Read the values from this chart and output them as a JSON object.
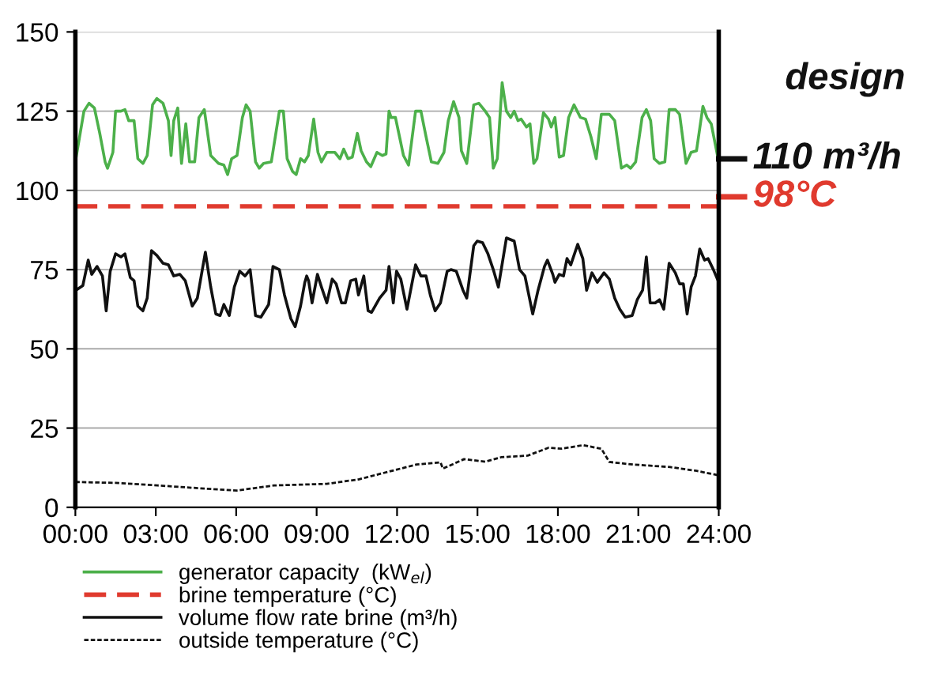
{
  "chart_data": {
    "type": "line",
    "xlim": [
      0,
      24
    ],
    "ylim": [
      0,
      150
    ],
    "xticks": [
      {
        "value": 0,
        "label": "00:00"
      },
      {
        "value": 3,
        "label": "03:00"
      },
      {
        "value": 6,
        "label": "06:00"
      },
      {
        "value": 9,
        "label": "09:00"
      },
      {
        "value": 12,
        "label": "12:00"
      },
      {
        "value": 15,
        "label": "15:00"
      },
      {
        "value": 18,
        "label": "18:00"
      },
      {
        "value": 21,
        "label": "21:00"
      },
      {
        "value": 24,
        "label": "24:00"
      }
    ],
    "yticks": [
      0,
      25,
      50,
      75,
      100,
      125,
      150
    ],
    "grid": "y",
    "legend": "bottom",
    "series": [
      {
        "name": "generator capacity  (kW$_{el}$)",
        "color": "#4cb04a",
        "line_style": "solid",
        "x": [
          0.02,
          0.32,
          0.51,
          0.71,
          0.91,
          1.11,
          1.2,
          1.4,
          1.5,
          1.7,
          1.85,
          1.99,
          2.19,
          2.33,
          2.52,
          2.68,
          2.88,
          3.04,
          3.27,
          3.47,
          3.57,
          3.67,
          3.82,
          3.96,
          4.12,
          4.26,
          4.45,
          4.61,
          4.81,
          5.05,
          5.34,
          5.54,
          5.68,
          5.83,
          6.03,
          6.23,
          6.37,
          6.52,
          6.72,
          6.86,
          7.02,
          7.31,
          7.61,
          7.76,
          7.9,
          8.1,
          8.24,
          8.4,
          8.55,
          8.69,
          8.89,
          9.05,
          9.18,
          9.38,
          9.68,
          9.87,
          10.01,
          10.17,
          10.33,
          10.52,
          10.66,
          10.86,
          11.02,
          11.25,
          11.45,
          11.59,
          11.7,
          11.78,
          11.94,
          12.24,
          12.43,
          12.69,
          12.89,
          13.08,
          13.28,
          13.52,
          13.75,
          13.91,
          14.11,
          14.31,
          14.4,
          14.6,
          14.86,
          15.05,
          15.29,
          15.45,
          15.59,
          15.74,
          15.92,
          16.08,
          16.24,
          16.37,
          16.51,
          16.63,
          16.83,
          16.96,
          17.1,
          17.22,
          17.46,
          17.65,
          17.75,
          17.89,
          18.05,
          18.21,
          18.4,
          18.6,
          18.84,
          19.03,
          19.23,
          19.43,
          19.62,
          19.92,
          20.12,
          20.37,
          20.57,
          20.71,
          20.9,
          21.14,
          21.3,
          21.46,
          21.59,
          21.79,
          21.99,
          22.15,
          22.38,
          22.54,
          22.78,
          22.97,
          23.17,
          23.41,
          23.56,
          23.72,
          24
        ],
        "values": [
          110,
          125,
          127.5,
          126,
          118,
          109,
          107,
          112,
          125,
          125,
          125.5,
          122,
          122,
          110,
          108.5,
          111,
          127,
          129,
          127.5,
          122,
          111,
          122,
          126,
          108.5,
          121,
          109,
          109,
          123,
          125.5,
          111,
          108.5,
          108,
          105,
          110,
          111,
          123,
          127,
          125,
          109,
          107,
          108.5,
          109,
          125,
          125,
          110,
          106,
          105,
          110,
          109,
          111,
          122.5,
          112,
          109,
          112,
          112,
          110,
          113,
          110,
          110.5,
          118,
          112.5,
          109,
          107.5,
          112,
          111,
          111.5,
          125,
          123,
          123,
          111,
          108,
          125,
          125,
          117,
          109,
          108.5,
          112,
          122,
          128,
          123,
          112.5,
          108.5,
          127,
          127.5,
          125,
          123,
          107,
          110,
          134,
          125,
          123,
          125,
          122,
          122.5,
          120,
          121,
          108.5,
          110,
          124.5,
          122.5,
          120,
          123,
          110.5,
          111,
          123,
          127,
          123,
          122.5,
          117,
          110,
          124,
          124,
          122,
          107,
          108,
          107,
          109,
          123,
          125.5,
          122,
          110,
          108.5,
          109,
          125.5,
          125.5,
          124,
          108.5,
          112,
          112.5,
          126.5,
          123,
          121,
          109
        ]
      },
      {
        "name": "brine temperature (°C)",
        "color": "#e03a2e",
        "line_style": "dashed",
        "x": [
          0,
          24
        ],
        "values": [
          95,
          95
        ]
      },
      {
        "name": "volume flow rate brine (m³/h)",
        "color": "#111111",
        "line_style": "solid",
        "x": [
          0.02,
          0.28,
          0.48,
          0.61,
          0.81,
          1.01,
          1.15,
          1.3,
          1.5,
          1.7,
          1.85,
          2.05,
          2.19,
          2.33,
          2.52,
          2.68,
          2.84,
          3.04,
          3.27,
          3.47,
          3.67,
          3.9,
          4.1,
          4.36,
          4.55,
          4.85,
          5.05,
          5.24,
          5.4,
          5.54,
          5.74,
          5.93,
          6.13,
          6.33,
          6.52,
          6.72,
          6.92,
          7.21,
          7.37,
          7.61,
          7.8,
          8.04,
          8.2,
          8.4,
          8.56,
          8.63,
          8.7,
          8.83,
          9.03,
          9.18,
          9.38,
          9.58,
          9.73,
          9.93,
          10.07,
          10.27,
          10.46,
          10.56,
          10.76,
          10.92,
          11.05,
          11.35,
          11.59,
          11.7,
          11.86,
          11.98,
          12.14,
          12.37,
          12.69,
          12.89,
          13.08,
          13.24,
          13.42,
          13.62,
          13.87,
          14.01,
          14.21,
          14.46,
          14.6,
          14.86,
          14.99,
          15.19,
          15.39,
          15.59,
          15.78,
          16.08,
          16.37,
          16.57,
          16.77,
          17.06,
          17.26,
          17.5,
          17.61,
          17.81,
          17.89,
          18.05,
          18.21,
          18.34,
          18.48,
          18.74,
          18.93,
          19.07,
          19.27,
          19.47,
          19.72,
          19.92,
          20.12,
          20.31,
          20.51,
          20.77,
          20.96,
          21.16,
          21.3,
          21.44,
          21.63,
          21.79,
          21.95,
          22.15,
          22.38,
          22.54,
          22.68,
          22.82,
          22.97,
          23.13,
          23.29,
          23.47,
          23.6,
          23.8,
          24
        ],
        "values": [
          68.5,
          70,
          78,
          73.5,
          76,
          73,
          62,
          74.5,
          80,
          79,
          80,
          72.5,
          71.5,
          63.5,
          62,
          66,
          81,
          79.5,
          77,
          76.5,
          73,
          73.5,
          71.5,
          63.5,
          66,
          80.5,
          69.5,
          61,
          60.5,
          64,
          60.5,
          69.5,
          74.5,
          73,
          75,
          60.5,
          60,
          64,
          76,
          75,
          67,
          59.5,
          57,
          63.5,
          71,
          73,
          71.5,
          64.5,
          73.5,
          69.5,
          64.5,
          72,
          70.5,
          64.5,
          64.5,
          71.5,
          72,
          67,
          73,
          62,
          61.5,
          66,
          68.5,
          76,
          64.5,
          74.5,
          72,
          62.5,
          76.5,
          73,
          73,
          67,
          62,
          64.5,
          74.5,
          75,
          74.5,
          68.5,
          66,
          82.5,
          84,
          83.5,
          80,
          75,
          69.5,
          85,
          84,
          75,
          73,
          61,
          68.5,
          76,
          78,
          73.5,
          71,
          73.5,
          73,
          78.5,
          76.5,
          83,
          78.5,
          68.5,
          74,
          71,
          74,
          72,
          66,
          62.5,
          60,
          60.5,
          65.5,
          68.5,
          79,
          64.5,
          64.5,
          65.5,
          62.5,
          77,
          74,
          70.5,
          70.5,
          61,
          69.5,
          73,
          81.5,
          78,
          78.5,
          75,
          71
        ]
      },
      {
        "name": "outside temperature (°C)",
        "color": "#111111",
        "line_style": "dotted",
        "x": [
          0,
          1.5,
          3.07,
          4.65,
          6.03,
          7.41,
          9.38,
          10.56,
          11.94,
          12.73,
          13.62,
          13.71,
          14.5,
          15.29,
          15.88,
          16.87,
          17.65,
          18.15,
          18.93,
          19.62,
          19.92,
          20.81,
          22.19,
          23.17,
          24
        ],
        "values": [
          8,
          7.7,
          6.9,
          6,
          5.3,
          6.9,
          7.4,
          8.8,
          11.8,
          13.5,
          14.2,
          12.2,
          15.2,
          14.4,
          15.8,
          16.3,
          18.8,
          18.5,
          19.6,
          18.5,
          14.3,
          13.5,
          12.7,
          11.5,
          10.1
        ]
      }
    ],
    "annotations": [
      "design",
      "110 m³/h",
      "98°C"
    ]
  }
}
